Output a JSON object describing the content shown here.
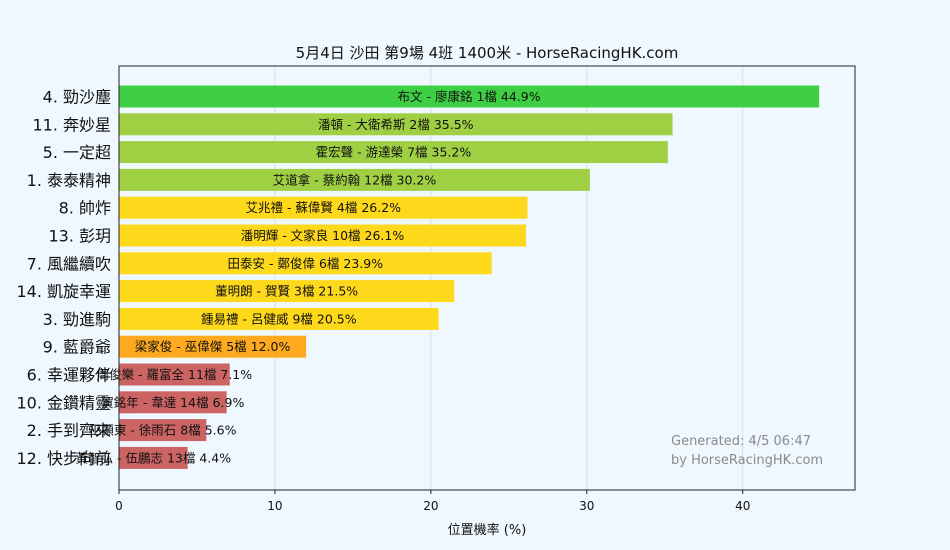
{
  "chart_data": {
    "type": "bar",
    "orientation": "horizontal",
    "title": "5月4日  沙田  第9場  4班  1400米 - HorseRacingHK.com",
    "xlabel": "位置機率 (%)",
    "ylabel": "",
    "xlim": [
      0,
      47.2
    ],
    "xticks": [
      "0",
      "10",
      "20",
      "30",
      "40"
    ],
    "xtick_values": [
      0,
      10,
      20,
      30,
      40
    ],
    "grid": true,
    "watermark": [
      "Generated: 4/5 06:47",
      "by HorseRacingHK.com"
    ],
    "bars": [
      {
        "horse": "4. 勁沙塵",
        "label": "布文 - 廖康銘 1檔  44.9%",
        "value": 44.9,
        "color": "#3ecf44"
      },
      {
        "horse": "11. 奔妙星",
        "label": "潘頓 - 大衛希斯 2檔  35.5%",
        "value": 35.5,
        "color": "#9fd044"
      },
      {
        "horse": "5. 一定超",
        "label": "霍宏聲 - 游達榮 7檔  35.2%",
        "value": 35.2,
        "color": "#9fd044"
      },
      {
        "horse": "1. 泰泰精神",
        "label": "艾道拿 - 蔡約翰 12檔  30.2%",
        "value": 30.2,
        "color": "#9fd044"
      },
      {
        "horse": "8. 帥炸",
        "label": "艾兆禮 - 蘇偉賢 4檔  26.2%",
        "value": 26.2,
        "color": "#fed81b"
      },
      {
        "horse": "13. 彭玥",
        "label": "潘明輝 - 文家良 10檔  26.1%",
        "value": 26.1,
        "color": "#fed81b"
      },
      {
        "horse": "7. 風繼續吹",
        "label": "田泰安 - 鄭俊偉 6檔  23.9%",
        "value": 23.9,
        "color": "#fed81b"
      },
      {
        "horse": "14. 凱旋幸運",
        "label": "董明朗 - 賀賢 3檔  21.5%",
        "value": 21.5,
        "color": "#fed81b"
      },
      {
        "horse": "3. 勁進駒",
        "label": "鍾易禮 - 呂健威 9檔  20.5%",
        "value": 20.5,
        "color": "#fed81b"
      },
      {
        "horse": "9. 藍爵爺",
        "label": "梁家俊 - 巫偉傑 5檔  12.0%",
        "value": 12.0,
        "color": "#ffaa1e"
      },
      {
        "horse": "6. 幸運夥伴",
        "label": "周俊樂 - 羅富全 11檔  7.1%",
        "value": 7.1,
        "color": "#cd6464"
      },
      {
        "horse": "10. 金鑽精靈",
        "label": "賀銘年 - 韋達 14檔  6.9%",
        "value": 6.9,
        "color": "#cd6464"
      },
      {
        "horse": "2. 手到齊來",
        "label": "巫顯東 - 徐雨石 8檔  5.6%",
        "value": 5.6,
        "color": "#cd6464"
      },
      {
        "horse": "12. 快步向前",
        "label": "黃智弘 - 伍鵬志 13檔  4.4%",
        "value": 4.4,
        "color": "#cd6464"
      }
    ]
  }
}
